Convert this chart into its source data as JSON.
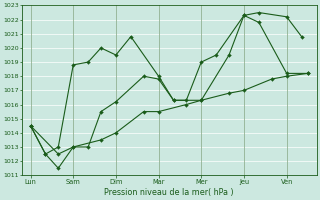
{
  "xlabel": "Pression niveau de la mer( hPa )",
  "xlabels": [
    "Lun",
    "Sam",
    "Dim",
    "Mar",
    "Mer",
    "Jeu",
    "Ven"
  ],
  "ylim": [
    1011,
    1023
  ],
  "background_color": "#cce8e0",
  "grid_color": "#ffffff",
  "line_color": "#1a5c1a",
  "series1_x": [
    0.0,
    0.35,
    0.65,
    1.0,
    1.35,
    1.65,
    2.0,
    2.35,
    3.0,
    3.35,
    3.65,
    4.0,
    4.35,
    5.0,
    5.35,
    6.0,
    6.35
  ],
  "series1_y": [
    1014.5,
    1012.5,
    1013.0,
    1018.8,
    1019.0,
    1020.0,
    1019.5,
    1020.8,
    1018.0,
    1016.3,
    1016.3,
    1019.0,
    1019.5,
    1022.3,
    1022.5,
    1022.2,
    1020.8
  ],
  "series2_x": [
    0.0,
    0.35,
    0.65,
    1.0,
    1.35,
    1.65,
    2.0,
    2.65,
    3.0,
    3.35,
    4.0,
    4.65,
    5.0,
    5.35,
    6.0,
    6.5
  ],
  "series2_y": [
    1014.5,
    1012.5,
    1011.5,
    1013.0,
    1013.0,
    1015.5,
    1016.2,
    1018.0,
    1017.8,
    1016.3,
    1016.3,
    1019.5,
    1022.3,
    1021.8,
    1018.2,
    1018.2
  ],
  "series3_x": [
    0.0,
    0.65,
    1.0,
    1.65,
    2.0,
    2.65,
    3.0,
    3.65,
    4.0,
    4.65,
    5.0,
    5.65,
    6.0,
    6.5
  ],
  "series3_y": [
    1014.5,
    1012.5,
    1013.0,
    1013.5,
    1014.0,
    1015.5,
    1015.5,
    1016.0,
    1016.3,
    1016.8,
    1017.0,
    1017.8,
    1018.0,
    1018.2
  ],
  "figsize": [
    3.2,
    2.0
  ],
  "dpi": 100
}
